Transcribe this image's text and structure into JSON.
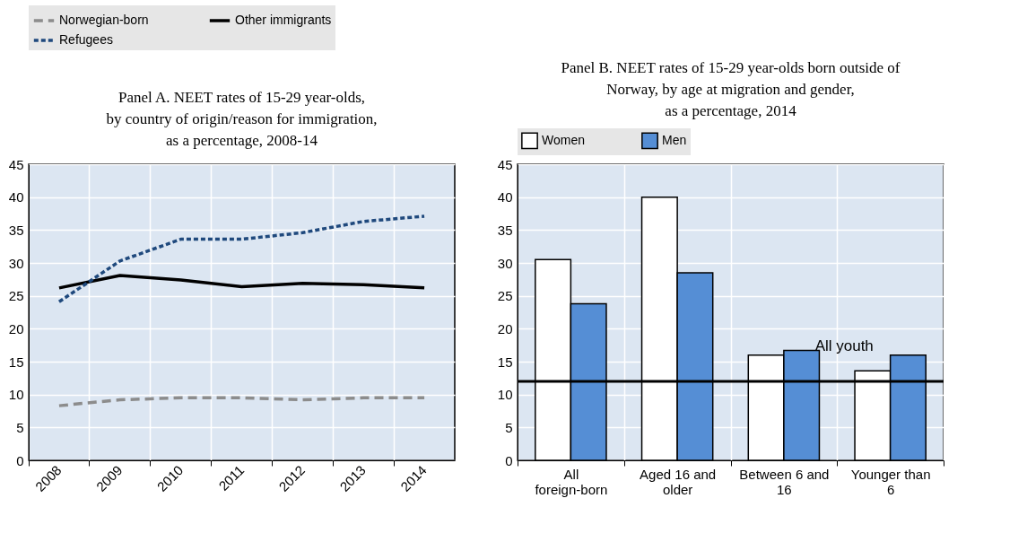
{
  "chart_data": [
    {
      "type": "line",
      "title": [
        "Panel A. NEET rates of 15-29 year-olds,",
        "by country of origin/reason for immigration,",
        "as a percentage, 2008-14"
      ],
      "categories": [
        "2008",
        "2009",
        "2010",
        "2011",
        "2012",
        "2013",
        "2014"
      ],
      "series": [
        {
          "name": "Norwegian-born",
          "color": "#8c8c8c",
          "line_style": "dashed",
          "values": [
            8.3,
            9.2,
            9.5,
            9.5,
            9.2,
            9.5,
            9.5
          ]
        },
        {
          "name": "Other immigrants",
          "color": "#000000",
          "line_style": "solid",
          "values": [
            26.2,
            28.1,
            27.4,
            26.4,
            26.9,
            26.7,
            26.2
          ]
        },
        {
          "name": "Refugees",
          "color": "#1f497d",
          "line_style": "dotted",
          "values": [
            24.1,
            30.3,
            33.6,
            33.6,
            34.6,
            36.3,
            37.1
          ]
        }
      ],
      "ylim": [
        0,
        45
      ],
      "yticks": [
        0,
        5,
        10,
        15,
        20,
        25,
        30,
        35,
        40,
        45
      ],
      "grid": true,
      "legend": "top",
      "marker": "none"
    },
    {
      "type": "bar",
      "title": [
        "Panel B. NEET rates of 15-29 year-olds born outside of",
        "Norway, by age at migration and gender,",
        "as a percentage, 2014"
      ],
      "categories": [
        "All foreign-born",
        "Aged 16 and older",
        "Between 6 and 16",
        "Younger than 6"
      ],
      "series": [
        {
          "name": "Women",
          "color": "#ffffff",
          "values": [
            30.5,
            40.0,
            16.0,
            13.6
          ]
        },
        {
          "name": "Men",
          "color": "#558ed5",
          "values": [
            23.8,
            28.5,
            16.7,
            16.0
          ]
        }
      ],
      "ref_lines": [
        {
          "axis": "y",
          "value": 12,
          "label": "All youth",
          "color": "#000000"
        }
      ],
      "ylim": [
        0,
        45
      ],
      "yticks": [
        0,
        5,
        10,
        15,
        20,
        25,
        30,
        35,
        40,
        45
      ],
      "grid": true,
      "legend": "top"
    }
  ]
}
